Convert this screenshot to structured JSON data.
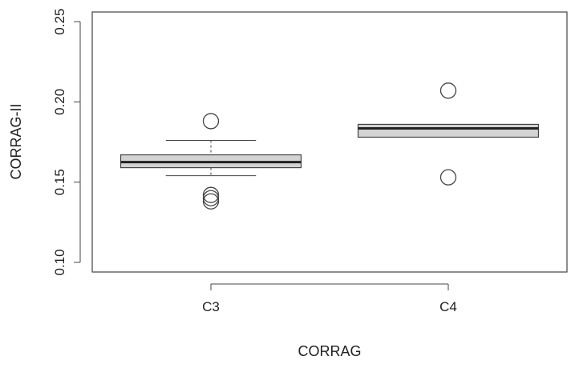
{
  "chart_data": {
    "type": "boxplot",
    "title": "",
    "xlabel": "CORRAG",
    "ylabel": "CORRAG-II",
    "ylim": [
      0.094,
      0.256
    ],
    "yticks": [
      "0.10",
      "0.15",
      "0.20",
      "0.25"
    ],
    "ytick_values": [
      0.1,
      0.15,
      0.2,
      0.25
    ],
    "categories": [
      "C3",
      "C4"
    ],
    "grid": false,
    "legend": "none",
    "colors": {
      "box_fill": "#d3d3d3",
      "stroke": "#444444",
      "median": "#222222"
    },
    "boxes": [
      {
        "category": "C3",
        "q1": 0.159,
        "median": 0.1625,
        "q3": 0.167,
        "whisker_low": 0.154,
        "whisker_high": 0.176,
        "outliers": [
          0.188,
          0.142,
          0.14,
          0.138
        ]
      },
      {
        "category": "C4",
        "q1": 0.178,
        "median": 0.1835,
        "q3": 0.186,
        "whisker_low": 0.178,
        "whisker_high": 0.186,
        "outliers": [
          0.207,
          0.153
        ]
      }
    ]
  }
}
